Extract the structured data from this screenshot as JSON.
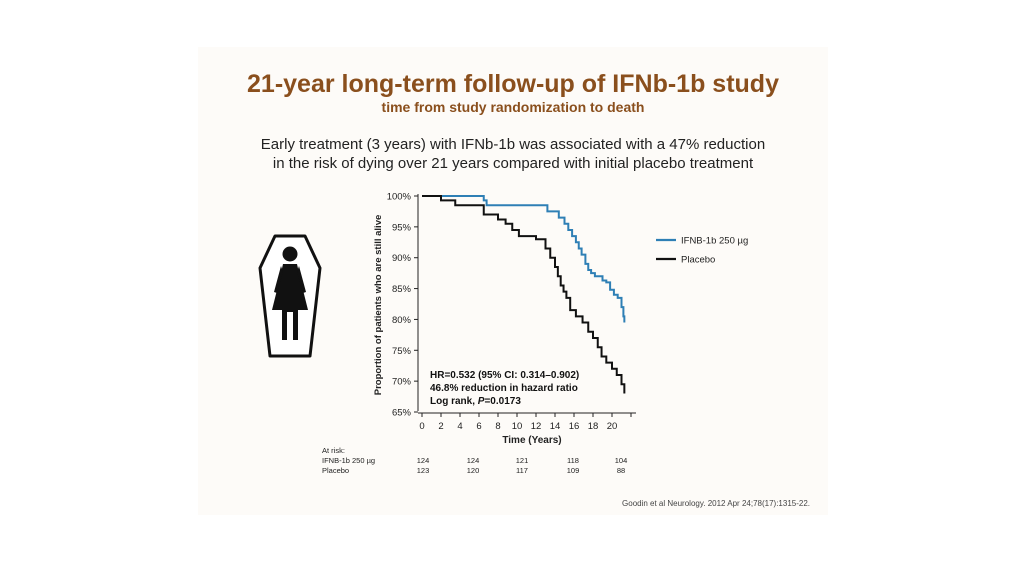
{
  "slide": {
    "title": "21-year long-term follow-up of IFNb-1b study",
    "subtitle": "time from study randomization to death",
    "lead_lines": [
      "Early treatment (3 years) with IFNb-1b was associated with a 47% reduction",
      "in the risk of dying over 21 years compared with initial placebo treatment"
    ],
    "citation": "Goodin et al Neurology. 2012 Apr 24;78(17):1315-22.",
    "icon": "female-in-coffin-icon"
  },
  "chart_data": {
    "type": "line",
    "subtype": "kaplan-meier-step",
    "xlabel": "Time (Years)",
    "ylabel": "Proportion of patients who are still alive",
    "xlim": [
      0,
      22
    ],
    "ylim": [
      65,
      100
    ],
    "x_ticks": [
      0,
      2,
      4,
      6,
      8,
      10,
      12,
      14,
      16,
      18,
      20
    ],
    "y_ticks": [
      "65%",
      "70%",
      "75%",
      "80%",
      "85%",
      "90%",
      "95%",
      "100%"
    ],
    "y_tick_values": [
      65,
      70,
      75,
      80,
      85,
      90,
      95,
      100
    ],
    "legend_position": "right",
    "series": [
      {
        "name": "IFNB-1b 250 µg",
        "color": "#2e7fb5",
        "x": [
          0,
          6.5,
          6.8,
          12.3,
          13.2,
          14.0,
          14.4,
          15.0,
          15.4,
          15.8,
          16.2,
          16.5,
          16.8,
          17.2,
          17.5,
          17.8,
          18.2,
          19.0,
          19.4,
          19.8,
          20.2,
          20.6,
          21.0,
          21.2,
          21.3
        ],
        "y": [
          100,
          99.3,
          98.5,
          98.5,
          97.5,
          97.5,
          96.5,
          95.5,
          94.5,
          93.5,
          92.5,
          91.5,
          90.5,
          89.0,
          88.0,
          87.5,
          87.0,
          86.3,
          86.0,
          84.8,
          84.0,
          83.5,
          82.0,
          80.5,
          79.5
        ],
        "line_width": 2
      },
      {
        "name": "Placebo",
        "color": "#111111",
        "x": [
          0,
          2.0,
          3.5,
          6.5,
          8.0,
          8.8,
          9.5,
          10.2,
          12.0,
          13.0,
          13.5,
          14.0,
          14.3,
          14.6,
          14.9,
          15.2,
          15.6,
          16.2,
          16.9,
          17.5,
          18.0,
          18.5,
          18.9,
          19.4,
          20.0,
          20.5,
          21.0,
          21.3
        ],
        "y": [
          100,
          99.3,
          98.5,
          97.0,
          96.2,
          95.5,
          94.5,
          93.5,
          93.0,
          91.5,
          90.0,
          88.5,
          87.0,
          85.5,
          84.5,
          83.5,
          81.5,
          80.5,
          79.5,
          78.0,
          77.0,
          75.5,
          74.0,
          73.0,
          72.0,
          71.0,
          69.5,
          68.0
        ],
        "line_width": 2
      }
    ],
    "annotation": {
      "lines": [
        "HR=0.532 (95% CI: 0.314–0.902)",
        "46.8% reduction in hazard ratio"
      ],
      "logrank_prefix": "Log rank, ",
      "logrank_p": "P",
      "logrank_suffix": "=0.0173"
    },
    "at_risk": {
      "header": "At risk:",
      "x": [
        0,
        5,
        10,
        15,
        20
      ],
      "rows": [
        {
          "label": "IFNB-1b 250 µg",
          "values": [
            124,
            124,
            121,
            118,
            104
          ]
        },
        {
          "label": "Placebo",
          "values": [
            123,
            120,
            117,
            109,
            88
          ]
        }
      ]
    }
  }
}
